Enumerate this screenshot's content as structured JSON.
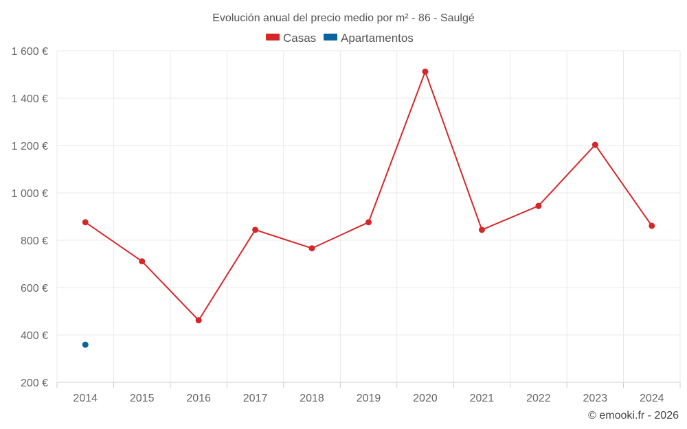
{
  "chart_data": {
    "type": "line",
    "title": "Evolución anual del precio medio por m² - 86 - Saulgé",
    "categories": [
      "2014",
      "2015",
      "2016",
      "2017",
      "2018",
      "2019",
      "2020",
      "2021",
      "2022",
      "2023",
      "2024"
    ],
    "series": [
      {
        "name": "Casas",
        "color": "#d62728",
        "values": [
          876,
          711,
          462,
          844,
          766,
          876,
          1512,
          844,
          945,
          1203,
          861
        ]
      },
      {
        "name": "Apartamentos",
        "color": "#0b63a0",
        "values": [
          359,
          null,
          null,
          null,
          null,
          null,
          null,
          null,
          null,
          null,
          null
        ]
      }
    ],
    "ylim": [
      200,
      1600
    ],
    "yticks": [
      200,
      400,
      600,
      800,
      1000,
      1200,
      1400,
      1600
    ],
    "ytick_labels": [
      "200 €",
      "400 €",
      "600 €",
      "800 €",
      "1 000 €",
      "1 200 €",
      "1 400 €",
      "1 600 €"
    ],
    "grid": true,
    "legend_position": "top-center"
  },
  "credit": "© emooki.fr - 2026"
}
